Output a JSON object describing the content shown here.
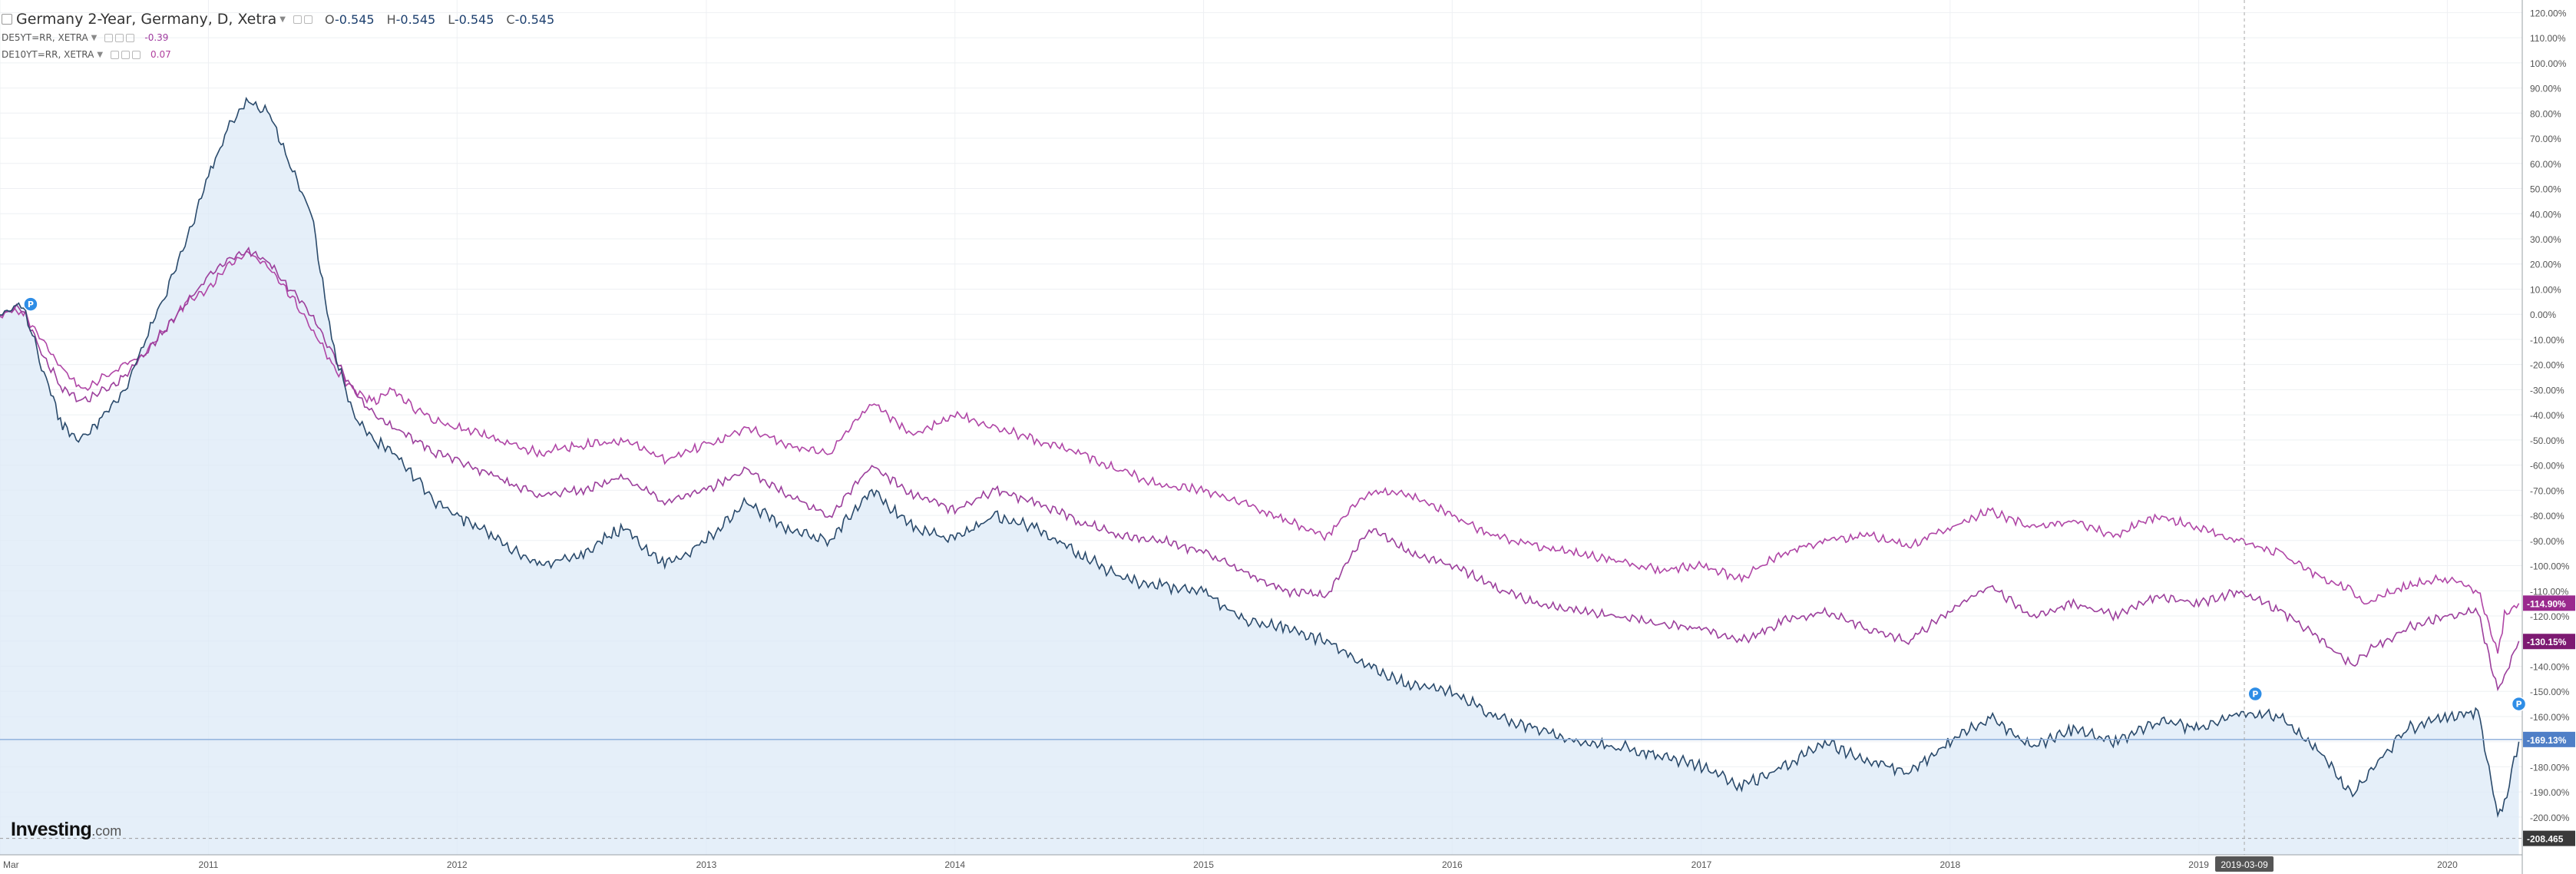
{
  "header": {
    "title": "Germany 2-Year, Germany, D, Xetra",
    "ohlc": [
      {
        "label": "O",
        "value": "-0.545"
      },
      {
        "label": "H",
        "value": "-0.545"
      },
      {
        "label": "L",
        "value": "-0.545"
      },
      {
        "label": "C",
        "value": "-0.545"
      }
    ],
    "comparisons": [
      {
        "symbol": "DE5YT=RR, XETRA",
        "value": "-0.39",
        "color": "#9e3a9e"
      },
      {
        "symbol": "DE10YT=RR, XETRA",
        "value": "0.07",
        "color": "#b0409e"
      }
    ]
  },
  "brand": {
    "name": "Investing",
    "suffix": ".com"
  },
  "crosshair_date": "2019-03-09",
  "pin_icon_label": "P",
  "colors": {
    "main_series": "#2a4a6b",
    "area_fill": "#dce9f7",
    "de5y": "#9c3f9c",
    "de10y": "#b046a6",
    "last_main_badge": "#4f7fc7",
    "last_5y_badge": "#7d1a72",
    "last_10y_badge": "#9a2a8e",
    "low_badge": "#3a3a3a",
    "crosshair_badge": "#555555",
    "grid": "#eef0f3",
    "axis_text": "#555555"
  },
  "chart_data": {
    "type": "line",
    "title": "Germany 2-Year, Germany, D, Xetra",
    "y_axis": {
      "unit": "%",
      "min": -215,
      "max": 125,
      "ticks": [
        120,
        110,
        100,
        90,
        80,
        70,
        60,
        50,
        40,
        30,
        20,
        10,
        0,
        -10,
        -20,
        -30,
        -40,
        -50,
        -60,
        -70,
        -80,
        -90,
        -100,
        -110,
        -120,
        -130,
        -140,
        -150,
        -160,
        -170,
        -180,
        -190,
        -200
      ],
      "tick_labels": [
        "120.00%",
        "110.00%",
        "100.00%",
        "90.00%",
        "80.00%",
        "70.00%",
        "60.00%",
        "50.00%",
        "40.00%",
        "30.00%",
        "20.00%",
        "10.00%",
        "0.00%",
        "-10.00%",
        "-20.00%",
        "-30.00%",
        "-40.00%",
        "-50.00%",
        "-60.00%",
        "-70.00%",
        "-80.00%",
        "-90.00%",
        "-100.00%",
        "-110.00%",
        "-120.00%",
        "-130.00%",
        "-140.00%",
        "-150.00%",
        "-160.00%",
        "-170.00%",
        "-180.00%",
        "-190.00%",
        "-200.00%"
      ],
      "position": "right"
    },
    "x_axis": {
      "min": "2010-03-01",
      "max": "2020-04-20",
      "tick_dates": [
        "2010-03-01",
        "2011-01-01",
        "2012-01-01",
        "2013-01-01",
        "2014-01-01",
        "2015-01-01",
        "2016-01-01",
        "2017-01-01",
        "2018-01-01",
        "2019-01-01",
        "2020-01-01"
      ],
      "tick_labels": [
        "Mar",
        "2011",
        "2012",
        "2013",
        "2014",
        "2015",
        "2016",
        "2017",
        "2018",
        "2019",
        "2020"
      ]
    },
    "grid": true,
    "legend_position": "top-left",
    "series": [
      {
        "name": "Germany 2-Year",
        "style": "area",
        "x": [
          "2010-03-01",
          "2010-04-01",
          "2010-05-01",
          "2010-06-01",
          "2010-07-01",
          "2010-08-01",
          "2010-09-01",
          "2010-10-01",
          "2010-11-01",
          "2010-12-01",
          "2011-01-01",
          "2011-02-01",
          "2011-03-01",
          "2011-04-01",
          "2011-05-01",
          "2011-06-01",
          "2011-07-01",
          "2011-08-01",
          "2011-09-01",
          "2011-10-01",
          "2011-11-01",
          "2011-12-01",
          "2012-01-01",
          "2012-03-01",
          "2012-05-01",
          "2012-07-01",
          "2012-09-01",
          "2012-11-01",
          "2013-01-01",
          "2013-03-01",
          "2013-05-01",
          "2013-07-01",
          "2013-09-01",
          "2013-11-01",
          "2014-01-01",
          "2014-03-01",
          "2014-05-01",
          "2014-07-01",
          "2014-09-01",
          "2014-11-01",
          "2015-01-01",
          "2015-03-01",
          "2015-05-01",
          "2015-07-01",
          "2015-09-01",
          "2015-11-01",
          "2016-01-01",
          "2016-03-01",
          "2016-05-01",
          "2016-07-01",
          "2016-09-01",
          "2016-11-01",
          "2017-01-01",
          "2017-03-01",
          "2017-05-01",
          "2017-07-01",
          "2017-09-01",
          "2017-11-01",
          "2018-01-01",
          "2018-03-01",
          "2018-05-01",
          "2018-07-01",
          "2018-09-01",
          "2018-11-01",
          "2019-01-01",
          "2019-03-01",
          "2019-05-01",
          "2019-07-01",
          "2019-08-15",
          "2019-09-01",
          "2019-11-01",
          "2020-01-01",
          "2020-02-15",
          "2020-03-15",
          "2020-03-25",
          "2020-04-15"
        ],
        "values": [
          0,
          5,
          -20,
          -45,
          -50,
          -40,
          -30,
          -10,
          10,
          30,
          55,
          75,
          85,
          80,
          60,
          40,
          -10,
          -40,
          -50,
          -55,
          -65,
          -75,
          -80,
          -90,
          -100,
          -95,
          -85,
          -100,
          -90,
          -75,
          -85,
          -90,
          -70,
          -85,
          -90,
          -80,
          -85,
          -95,
          -105,
          -108,
          -110,
          -122,
          -125,
          -130,
          -140,
          -148,
          -150,
          -160,
          -165,
          -170,
          -172,
          -175,
          -180,
          -188,
          -180,
          -170,
          -178,
          -182,
          -170,
          -160,
          -172,
          -165,
          -170,
          -162,
          -165,
          -158,
          -160,
          -175,
          -192,
          -185,
          -165,
          -160,
          -158,
          -200,
          -195,
          -170
        ]
      },
      {
        "name": "DE5YT=RR, XETRA",
        "style": "line",
        "x": [
          "2010-03-01",
          "2010-04-01",
          "2010-05-01",
          "2010-06-01",
          "2010-07-01",
          "2010-08-01",
          "2010-09-01",
          "2010-10-01",
          "2010-11-01",
          "2010-12-01",
          "2011-01-01",
          "2011-02-01",
          "2011-03-01",
          "2011-04-01",
          "2011-05-01",
          "2011-06-01",
          "2011-07-01",
          "2011-08-01",
          "2011-09-01",
          "2011-10-01",
          "2011-11-01",
          "2011-12-01",
          "2012-01-01",
          "2012-03-01",
          "2012-05-01",
          "2012-07-01",
          "2012-09-01",
          "2012-11-01",
          "2013-01-01",
          "2013-03-01",
          "2013-05-01",
          "2013-07-01",
          "2013-09-01",
          "2013-11-01",
          "2014-01-01",
          "2014-03-01",
          "2014-05-01",
          "2014-07-01",
          "2014-09-01",
          "2014-11-01",
          "2015-01-01",
          "2015-03-01",
          "2015-05-01",
          "2015-07-01",
          "2015-09-01",
          "2015-11-01",
          "2016-01-01",
          "2016-03-01",
          "2016-05-01",
          "2016-07-01",
          "2016-09-01",
          "2016-11-01",
          "2017-01-01",
          "2017-03-01",
          "2017-05-01",
          "2017-07-01",
          "2017-09-01",
          "2017-11-01",
          "2018-01-01",
          "2018-03-01",
          "2018-05-01",
          "2018-07-01",
          "2018-09-01",
          "2018-11-01",
          "2019-01-01",
          "2019-03-01",
          "2019-05-01",
          "2019-07-01",
          "2019-08-15",
          "2019-09-01",
          "2019-11-01",
          "2020-01-01",
          "2020-02-15",
          "2020-03-15",
          "2020-03-25",
          "2020-04-15"
        ],
        "values": [
          0,
          3,
          -15,
          -30,
          -35,
          -30,
          -25,
          -15,
          -5,
          5,
          15,
          22,
          25,
          20,
          10,
          0,
          -15,
          -30,
          -40,
          -45,
          -50,
          -55,
          -58,
          -65,
          -72,
          -70,
          -65,
          -75,
          -70,
          -62,
          -72,
          -80,
          -60,
          -72,
          -78,
          -70,
          -75,
          -82,
          -88,
          -90,
          -95,
          -102,
          -110,
          -112,
          -85,
          -95,
          -100,
          -108,
          -115,
          -118,
          -120,
          -123,
          -125,
          -130,
          -122,
          -118,
          -125,
          -130,
          -118,
          -108,
          -120,
          -115,
          -120,
          -112,
          -115,
          -110,
          -118,
          -130,
          -140,
          -135,
          -125,
          -120,
          -118,
          -150,
          -145,
          -130
        ]
      },
      {
        "name": "DE10YT=RR, XETRA",
        "style": "line",
        "x": [
          "2010-03-01",
          "2010-04-01",
          "2010-05-01",
          "2010-06-01",
          "2010-07-01",
          "2010-08-01",
          "2010-09-01",
          "2010-10-01",
          "2010-11-01",
          "2010-12-01",
          "2011-01-01",
          "2011-02-01",
          "2011-03-01",
          "2011-04-01",
          "2011-05-01",
          "2011-06-01",
          "2011-07-01",
          "2011-08-01",
          "2011-09-01",
          "2011-10-01",
          "2011-11-01",
          "2011-12-01",
          "2012-01-01",
          "2012-03-01",
          "2012-05-01",
          "2012-07-01",
          "2012-09-01",
          "2012-11-01",
          "2013-01-01",
          "2013-03-01",
          "2013-05-01",
          "2013-07-01",
          "2013-09-01",
          "2013-11-01",
          "2014-01-01",
          "2014-03-01",
          "2014-05-01",
          "2014-07-01",
          "2014-09-01",
          "2014-11-01",
          "2015-01-01",
          "2015-03-01",
          "2015-05-01",
          "2015-07-01",
          "2015-09-01",
          "2015-11-01",
          "2016-01-01",
          "2016-03-01",
          "2016-05-01",
          "2016-07-01",
          "2016-09-01",
          "2016-11-01",
          "2017-01-01",
          "2017-03-01",
          "2017-05-01",
          "2017-07-01",
          "2017-09-01",
          "2017-11-01",
          "2018-01-01",
          "2018-03-01",
          "2018-05-01",
          "2018-07-01",
          "2018-09-01",
          "2018-11-01",
          "2019-01-01",
          "2019-03-01",
          "2019-05-01",
          "2019-07-01",
          "2019-08-15",
          "2019-09-01",
          "2019-11-01",
          "2020-01-01",
          "2020-02-15",
          "2020-03-15",
          "2020-03-25",
          "2020-04-15"
        ],
        "values": [
          0,
          2,
          -10,
          -22,
          -30,
          -25,
          -20,
          -15,
          -5,
          5,
          10,
          20,
          25,
          18,
          8,
          -5,
          -20,
          -30,
          -35,
          -30,
          -38,
          -42,
          -45,
          -50,
          -55,
          -52,
          -50,
          -58,
          -52,
          -45,
          -52,
          -55,
          -35,
          -48,
          -40,
          -45,
          -50,
          -55,
          -62,
          -68,
          -70,
          -75,
          -82,
          -88,
          -70,
          -72,
          -80,
          -88,
          -92,
          -95,
          -98,
          -102,
          -100,
          -105,
          -95,
          -90,
          -88,
          -92,
          -85,
          -78,
          -85,
          -82,
          -88,
          -80,
          -85,
          -90,
          -95,
          -105,
          -110,
          -115,
          -108,
          -105,
          -110,
          -135,
          -120,
          -115
        ]
      }
    ],
    "last_values": [
      {
        "series": "DE10YT=RR, XETRA",
        "label": "-114.90%"
      },
      {
        "series": "DE5YT=RR, XETRA",
        "label": "-130.15%"
      },
      {
        "series": "Germany 2-Year",
        "label": "-169.13%"
      },
      {
        "series": "Germany 2-Year low",
        "label": "-208.465"
      }
    ]
  }
}
